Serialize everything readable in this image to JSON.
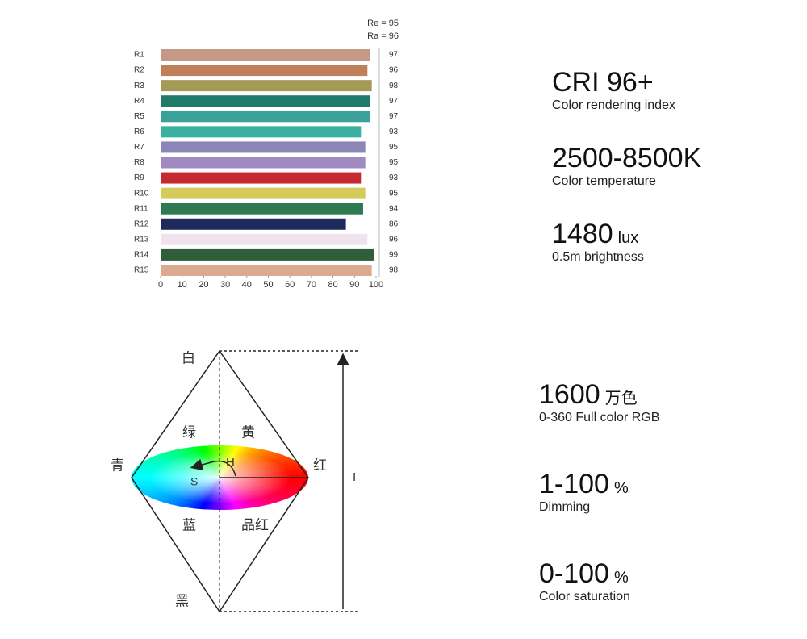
{
  "chart_data": {
    "type": "bar",
    "orientation": "horizontal",
    "annotations": [
      "Re = 95",
      "Ra = 96"
    ],
    "categories": [
      "R1",
      "R2",
      "R3",
      "R4",
      "R5",
      "R6",
      "R7",
      "R8",
      "R9",
      "R10",
      "R11",
      "R12",
      "R13",
      "R14",
      "R15"
    ],
    "values": [
      97,
      96,
      98,
      97,
      97,
      93,
      95,
      95,
      93,
      95,
      94,
      86,
      96,
      99,
      98
    ],
    "colors": [
      "#c49a86",
      "#bf7f5a",
      "#a69a58",
      "#1f7a6a",
      "#3aa09a",
      "#3ab0a0",
      "#8a86b8",
      "#a08abf",
      "#c62a30",
      "#d4cc5a",
      "#2e7a50",
      "#1f2a5c",
      "#efe4ee",
      "#2f5e38",
      "#dcaa90"
    ],
    "xlim": [
      0,
      100
    ],
    "xticks": [
      0,
      10,
      20,
      30,
      40,
      50,
      60,
      70,
      80,
      90,
      100
    ],
    "grid": false
  },
  "specs": [
    {
      "value": "CRI 96+",
      "label": "Color rendering index"
    },
    {
      "value": "2500-8500K",
      "label": "Color temperature"
    },
    {
      "value": "1480",
      "unit": "lux",
      "label": "0.5m brightness"
    },
    {
      "value": "1600",
      "unit": "万色",
      "label": "0-360 Full color RGB"
    },
    {
      "value": "1-100",
      "unit": "%",
      "label": "Dimming"
    },
    {
      "value": "0-100",
      "unit": "%",
      "label": "Color saturation"
    }
  ],
  "diagram": {
    "white": "白",
    "green": "绿",
    "yellow": "黄",
    "cyan": "青",
    "red": "红",
    "blue": "蓝",
    "magenta": "品红",
    "black": "黑",
    "hue": "H",
    "saturation": "S",
    "intensity": "I"
  }
}
